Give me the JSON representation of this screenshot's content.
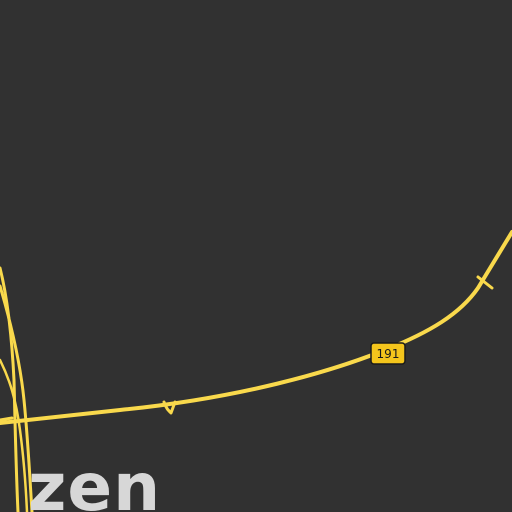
{
  "map": {
    "colors": {
      "background": "#313131",
      "road": "#f9d94c",
      "shield_fill": "#f4c51c",
      "shield_text": "#1a1a1a",
      "place_label": "#d7d7d7"
    },
    "route_shield": {
      "label": "191",
      "icon": "highway-route-shield"
    },
    "place_label": "zen"
  }
}
